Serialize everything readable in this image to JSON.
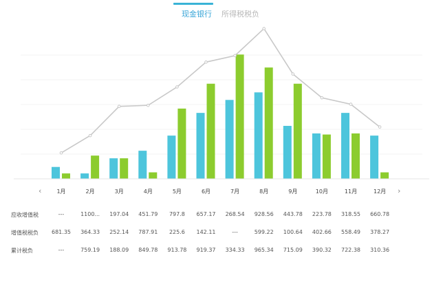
{
  "tabs": [
    {
      "label": "现金银行"
    },
    {
      "label": "所得税税负"
    }
  ],
  "navigation": {
    "prev": "‹",
    "next": "›"
  },
  "colors": {
    "blue_bars": "#4dc5dc",
    "green_bars": "#8ccc2e",
    "line": "#c8c8c8",
    "accent": "#39b3d6"
  },
  "chart_data": {
    "type": "bar",
    "categories": [
      "1月",
      "2月",
      "3月",
      "4月",
      "5月",
      "6月",
      "7月",
      "8月",
      "9月",
      "10月",
      "11月",
      "12月"
    ],
    "series": [
      {
        "type": "bar",
        "color": "#4dc5dc",
        "values": [
          110,
          50,
          190,
          260,
          400,
          610,
          730,
          800,
          490,
          420,
          610,
          400
        ]
      },
      {
        "type": "bar",
        "color": "#8ccc2e",
        "values": [
          50,
          215,
          190,
          60,
          650,
          880,
          1150,
          1030,
          880,
          410,
          420,
          60
        ]
      },
      {
        "type": "line",
        "color": "#c8c8c8",
        "values": [
          240,
          400,
          670,
          680,
          850,
          1080,
          1140,
          1390,
          970,
          750,
          690,
          480
        ]
      }
    ],
    "ylim": [
      0,
      1400
    ],
    "grid": true,
    "legend": "none"
  },
  "table": {
    "rows": [
      {
        "label": "应收增值税",
        "values": [
          "---",
          "1100...",
          "197.04",
          "451.79",
          "797.8",
          "657.17",
          "268.54",
          "928.56",
          "443.78",
          "223.78",
          "318.55",
          "660.78"
        ]
      },
      {
        "label": "增值税税负",
        "values": [
          "681.35",
          "364.33",
          "252.14",
          "787.91",
          "225.6",
          "142.11",
          "---",
          "599.22",
          "100.64",
          "402.66",
          "558.49",
          "378.27"
        ]
      },
      {
        "label": "累计税负",
        "values": [
          "---",
          "759.19",
          "188.09",
          "849.78",
          "913.78",
          "919.37",
          "334.33",
          "965.34",
          "715.09",
          "390.32",
          "722.38",
          "310.36"
        ]
      }
    ]
  }
}
